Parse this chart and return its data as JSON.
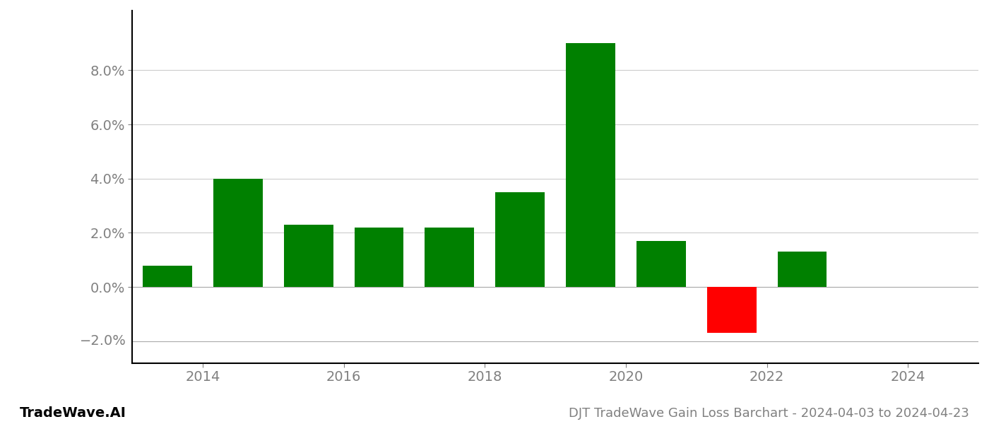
{
  "years": [
    2013.5,
    2014.5,
    2015.5,
    2016.5,
    2017.5,
    2018.5,
    2019.5,
    2020.5,
    2021.5,
    2022.5
  ],
  "values": [
    0.008,
    0.04,
    0.023,
    0.022,
    0.022,
    0.035,
    0.09,
    0.017,
    -0.017,
    0.013
  ],
  "colors": [
    "#008000",
    "#008000",
    "#008000",
    "#008000",
    "#008000",
    "#008000",
    "#008000",
    "#008000",
    "#ff0000",
    "#008000"
  ],
  "bar_width": 0.7,
  "ylim": [
    -0.028,
    0.102
  ],
  "yticks": [
    0.0,
    0.02,
    0.04,
    0.06,
    0.08
  ],
  "xtick_labels": [
    "2014",
    "2016",
    "2018",
    "2020",
    "2022",
    "2024"
  ],
  "xtick_positions": [
    2014,
    2016,
    2018,
    2020,
    2022,
    2024
  ],
  "xlim": [
    2013.0,
    2025.0
  ],
  "title": "DJT TradeWave Gain Loss Barchart - 2024-04-03 to 2024-04-23",
  "watermark": "TradeWave.AI",
  "background_color": "#ffffff",
  "grid_color": "#cccccc",
  "tick_label_color": "#808080",
  "title_color": "#808080",
  "watermark_color": "#000000",
  "title_fontsize": 13,
  "tick_fontsize": 14,
  "watermark_fontsize": 14,
  "left_spine_color": "#000000",
  "bottom_spine_color": "#000000"
}
